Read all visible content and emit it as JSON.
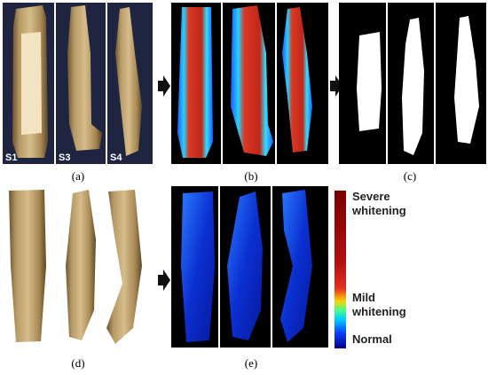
{
  "panels": {
    "a": {
      "caption": "(a)",
      "sample_labels": [
        "S1",
        "S3",
        "S4"
      ]
    },
    "b": {
      "caption": "(b)"
    },
    "c": {
      "caption": "(c)"
    },
    "d": {
      "caption": "(d)"
    },
    "e": {
      "caption": "(e)"
    }
  },
  "colorbar": {
    "high": [
      "Severe",
      "whitening"
    ],
    "mid": [
      "Mild",
      "whitening"
    ],
    "low": [
      "Normal"
    ]
  }
}
